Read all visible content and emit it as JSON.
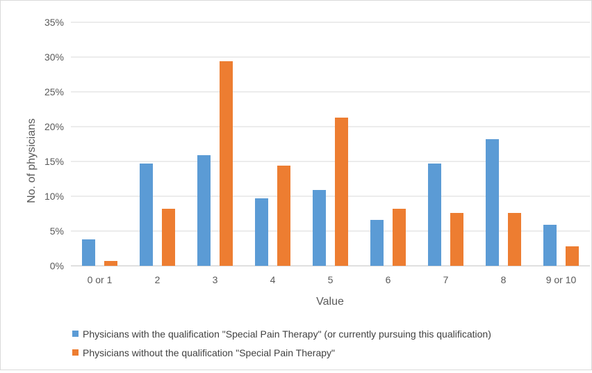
{
  "chart_data": {
    "type": "bar",
    "title": "",
    "xlabel": "Value",
    "ylabel": "No. of physicians",
    "ylim": [
      0,
      35
    ],
    "y_ticks": [
      "0%",
      "5%",
      "10%",
      "15%",
      "20%",
      "25%",
      "30%",
      "35%"
    ],
    "grid": "horizontal",
    "legend_position": "bottom",
    "categories": [
      "0 or 1",
      "2",
      "3",
      "4",
      "5",
      "6",
      "7",
      "8",
      "9 or 10"
    ],
    "series": [
      {
        "name": "Physicians with the qualification \"Special Pain Therapy\" (or currently pursuing this qualification)",
        "color": "#5B9BD5",
        "values": [
          3.8,
          14.7,
          15.9,
          9.7,
          10.9,
          6.6,
          14.7,
          18.2,
          5.9
        ]
      },
      {
        "name": "Physicians without the qualification \"Special Pain Therapy\"",
        "color": "#ED7D31",
        "values": [
          0.7,
          8.2,
          29.4,
          14.4,
          21.3,
          8.2,
          7.6,
          7.6,
          2.8
        ]
      }
    ]
  }
}
